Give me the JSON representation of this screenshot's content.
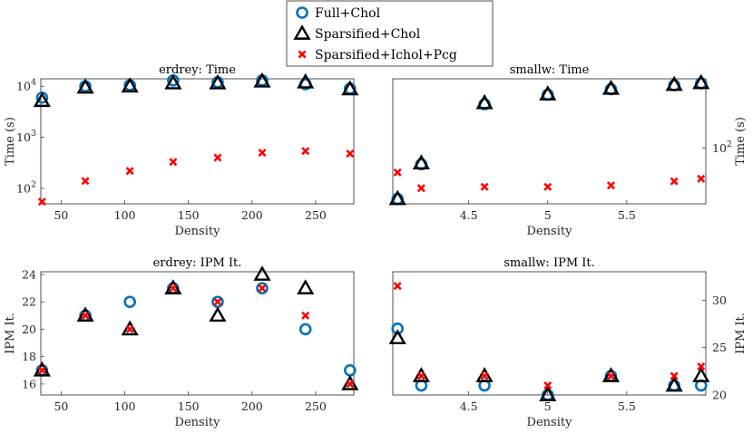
{
  "legend": {
    "entries": [
      {
        "name": "Full+Chol",
        "marker": "circle",
        "color": "#0072BD"
      },
      {
        "name": "Sparsified+Chol",
        "marker": "triangle",
        "color": "#000000"
      },
      {
        "name": "Sparsified+Ichol+Pcg",
        "marker": "x",
        "color": "#FF0000"
      }
    ]
  },
  "chart_data": [
    {
      "id": "erdrey-time",
      "type": "scatter",
      "title": "erdrey: Time",
      "xlabel": "Density",
      "ylabel": "Time (s)",
      "yscale": "log",
      "ylabel_side": "left",
      "xlim": [
        34,
        280
      ],
      "ylim": [
        50,
        14000
      ],
      "xticks": [
        50,
        100,
        150,
        200,
        250
      ],
      "xtick_labels": [
        "50",
        "100",
        "150",
        "200",
        "250"
      ],
      "yticks": [
        100,
        1000,
        10000
      ],
      "ytick_labels": [
        "10^2",
        "10^3",
        "10^4"
      ],
      "series": [
        {
          "name": "Full+Chol",
          "x": [
            35,
            69,
            104,
            138,
            173,
            208,
            242,
            277
          ],
          "y": [
            6000,
            10000,
            10500,
            13000,
            12000,
            13000,
            11000,
            9000
          ]
        },
        {
          "name": "Sparsified+Chol",
          "x": [
            35,
            69,
            104,
            138,
            173,
            208,
            242,
            277
          ],
          "y": [
            5200,
            9500,
            10000,
            11500,
            11500,
            12500,
            12000,
            8800
          ]
        },
        {
          "name": "Sparsified+Ichol+Pcg",
          "x": [
            35,
            69,
            104,
            138,
            173,
            208,
            242,
            277
          ],
          "y": [
            55,
            140,
            220,
            330,
            400,
            500,
            540,
            480
          ]
        }
      ]
    },
    {
      "id": "smallw-time",
      "type": "scatter",
      "title": "smallw: Time",
      "xlabel": "Density",
      "ylabel": "Time (s)",
      "yscale": "log",
      "ylabel_side": "right",
      "xlim": [
        4.02,
        6.0
      ],
      "ylim": [
        55,
        210
      ],
      "xticks": [
        4.5,
        5,
        5.5
      ],
      "xtick_labels": [
        "4.5",
        "5",
        "5.5"
      ],
      "yticks": [
        100
      ],
      "ytick_labels": [
        "10^2"
      ],
      "series": [
        {
          "name": "Full+Chol",
          "x": [
            4.05,
            4.2,
            4.6,
            5.0,
            5.4,
            5.8,
            5.97
          ],
          "y": [
            58,
            84,
            160,
            177,
            188,
            196,
            200
          ]
        },
        {
          "name": "Sparsified+Chol",
          "x": [
            4.05,
            4.2,
            4.6,
            5.0,
            5.4,
            5.8,
            5.97
          ],
          "y": [
            58,
            85,
            162,
            178,
            189,
            197,
            201
          ]
        },
        {
          "name": "Sparsified+Ichol+Pcg",
          "x": [
            4.05,
            4.2,
            4.6,
            5.0,
            5.4,
            5.8,
            5.97
          ],
          "y": [
            77,
            65,
            66,
            66,
            67,
            70,
            72
          ]
        }
      ]
    },
    {
      "id": "erdrey-ipm",
      "type": "scatter",
      "title": "erdrey: IPM It.",
      "xlabel": "Density",
      "ylabel": "IPM It.",
      "yscale": "linear",
      "ylabel_side": "left",
      "xlim": [
        34,
        280
      ],
      "ylim": [
        15.2,
        24.2
      ],
      "xticks": [
        50,
        100,
        150,
        200,
        250
      ],
      "xtick_labels": [
        "50",
        "100",
        "150",
        "200",
        "250"
      ],
      "yticks": [
        16,
        18,
        20,
        22,
        24
      ],
      "ytick_labels": [
        "16",
        "18",
        "20",
        "22",
        "24"
      ],
      "series": [
        {
          "name": "Full+Chol",
          "x": [
            35,
            69,
            104,
            138,
            173,
            208,
            242,
            277
          ],
          "y": [
            17,
            21,
            22,
            23,
            22,
            23,
            20,
            17
          ]
        },
        {
          "name": "Sparsified+Chol",
          "x": [
            35,
            69,
            104,
            138,
            173,
            208,
            242,
            277
          ],
          "y": [
            17,
            21,
            20,
            23,
            21,
            24,
            23,
            16
          ]
        },
        {
          "name": "Sparsified+Ichol+Pcg",
          "x": [
            35,
            69,
            104,
            138,
            173,
            208,
            242,
            277
          ],
          "y": [
            17,
            21,
            20,
            23,
            22,
            23,
            21,
            16
          ]
        }
      ]
    },
    {
      "id": "smallw-ipm",
      "type": "scatter",
      "title": "smallw: IPM It.",
      "xlabel": "Density",
      "ylabel": "IPM It.",
      "yscale": "linear",
      "ylabel_side": "right",
      "xlim": [
        4.02,
        6.0
      ],
      "ylim": [
        20,
        33
      ],
      "xticks": [
        4.5,
        5,
        5.5
      ],
      "xtick_labels": [
        "4.5",
        "5",
        "5.5"
      ],
      "yticks": [
        20,
        25,
        30
      ],
      "ytick_labels": [
        "20",
        "25",
        "30"
      ],
      "series": [
        {
          "name": "Full+Chol",
          "x": [
            4.05,
            4.2,
            4.6,
            5.0,
            5.4,
            5.8,
            5.97
          ],
          "y": [
            27,
            21,
            21,
            20,
            22,
            21,
            21
          ]
        },
        {
          "name": "Sparsified+Chol",
          "x": [
            4.05,
            4.2,
            4.6,
            5.0,
            5.4,
            5.8,
            5.97
          ],
          "y": [
            26,
            22,
            22,
            20,
            22,
            21,
            22
          ]
        },
        {
          "name": "Sparsified+Ichol+Pcg",
          "x": [
            4.05,
            4.2,
            4.6,
            5.0,
            5.4,
            5.8,
            5.97
          ],
          "y": [
            31.5,
            22,
            22,
            21,
            22,
            22,
            23
          ]
        }
      ]
    }
  ]
}
